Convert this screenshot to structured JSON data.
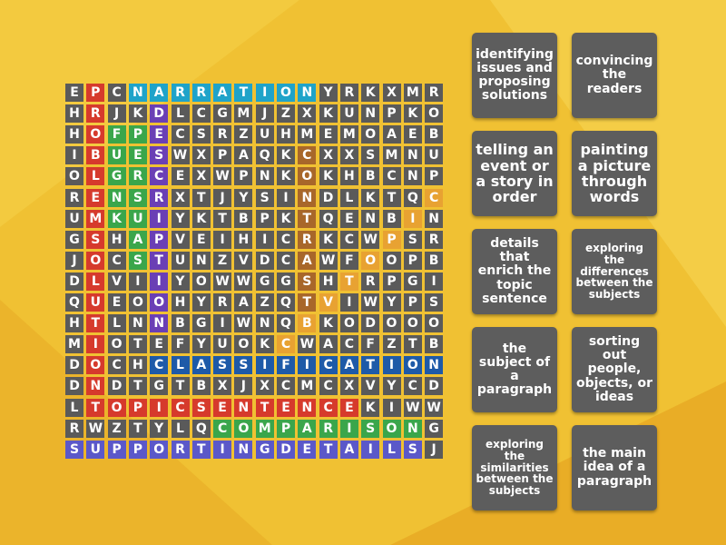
{
  "grid": [
    "EPCNARRATIONYRKXMR",
    "HRJKDLCGMJZXKUNPKO",
    "HOFPECSRZUHMEMOAEB",
    "IBUESWXPAQKCXXSMNU",
    "OLGRCEXWPNKOKHBCNP",
    "RENSRXTJYSINDLKTQC",
    "UMKUIYKTBPKTQENBIN",
    "GSHAPVEIHICRKCWPSR",
    "JOCSTUNZVDCAWFOOPB",
    "DLVIIYOWWGGSHTRPGI",
    "QUEOOHYRAZQTVIWYPS",
    "HTLNNBGIWNQBKODOOO",
    "MIOTEFYUOKCWACFZTB",
    "DOCHCLASSIFICATION",
    "DNDTGTBXJXCMCXVYCD",
    "LTOPICSENTENCEKIWW",
    "RWZTYLQCOMPARISONG",
    "SUPPORTINGDETAILSJ"
  ],
  "found_words": [
    {
      "word": "NARRATION",
      "color": "#1fa3c9"
    },
    {
      "word": "PROBLEMSOLUTION",
      "color": "#d63a2c"
    },
    {
      "word": "DESCRIPTION",
      "color": "#6a3fb5"
    },
    {
      "word": "PURPOSE",
      "color": "#3aa64b"
    },
    {
      "word": "CONTRAST",
      "color": "#a8672a"
    },
    {
      "word": "CATEGORY",
      "color": "#e8a232"
    },
    {
      "word": "TOPIC",
      "color": "#3aa64b"
    },
    {
      "word": "CLASSIFICATION",
      "color": "#1e5aa8"
    },
    {
      "word": "TOPICSENTENCE",
      "color": "#d63a2c"
    },
    {
      "word": "COMPARISON",
      "color": "#3aa64b"
    },
    {
      "word": "SUPPORTINGDETAILS",
      "color": "#5b58c9"
    }
  ],
  "clues": [
    {
      "text": "identifying issues and proposing solutions"
    },
    {
      "text": "convincing the readers"
    },
    {
      "text": "telling an event or a story in order"
    },
    {
      "text": "painting a picture through words"
    },
    {
      "text": "details that enrich the topic sentence"
    },
    {
      "text": "exploring the differences between the subjects"
    },
    {
      "text": "the subject of a paragraph"
    },
    {
      "text": "sorting out people, objects, or ideas"
    },
    {
      "text": "exploring the similarities between the subjects"
    },
    {
      "text": "the main idea of a paragraph"
    }
  ],
  "colors": {
    "background": "#f0c232",
    "cell": "#5a5a5a",
    "clue_tile": "#5d5d5d",
    "text": "#ffffff"
  }
}
